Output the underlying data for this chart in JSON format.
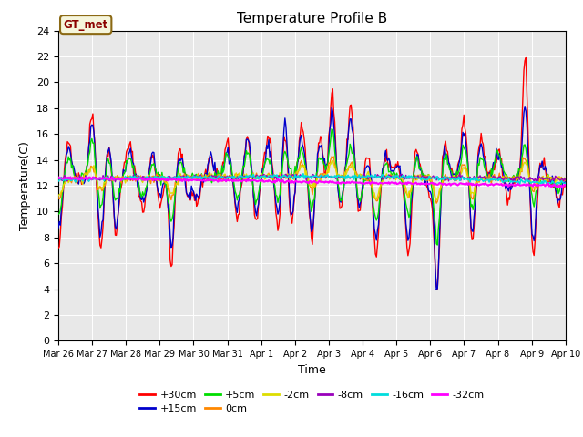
{
  "title": "Temperature Profile B",
  "xlabel": "Time",
  "ylabel": "Temperature(C)",
  "ylim": [
    0,
    24
  ],
  "yticks": [
    0,
    2,
    4,
    6,
    8,
    10,
    12,
    14,
    16,
    18,
    20,
    22,
    24
  ],
  "fig_bg": "#ffffff",
  "plot_bg": "#e8e8e8",
  "grid_color": "#ffffff",
  "annotation_text": "GT_met",
  "annotation_fg": "#8b0000",
  "annotation_bg": "#f5f5dc",
  "annotation_border": "#8b6914",
  "series": [
    {
      "label": "+30cm",
      "color": "#ff0000",
      "lw": 1.0
    },
    {
      "label": "+15cm",
      "color": "#0000cc",
      "lw": 1.0
    },
    {
      "label": "+5cm",
      "color": "#00dd00",
      "lw": 1.0
    },
    {
      "label": "0cm",
      "color": "#ff8800",
      "lw": 1.0
    },
    {
      "label": "-2cm",
      "color": "#dddd00",
      "lw": 1.0
    },
    {
      "label": "-8cm",
      "color": "#9900bb",
      "lw": 1.0
    },
    {
      "label": "-16cm",
      "color": "#00dddd",
      "lw": 1.2
    },
    {
      "label": "-32cm",
      "color": "#ff00ff",
      "lw": 1.5
    }
  ],
  "x_labels": [
    "Mar 26",
    "Mar 27",
    "Mar 28",
    "Mar 29",
    "Mar 30",
    "Mar 31",
    "Apr 1",
    "Apr 2",
    "Apr 3",
    "Apr 4",
    "Apr 5",
    "Apr 6",
    "Apr 7",
    "Apr 8",
    "Apr 9",
    "Apr 10"
  ],
  "n_points": 500,
  "figsize": [
    6.4,
    4.8
  ],
  "dpi": 100
}
